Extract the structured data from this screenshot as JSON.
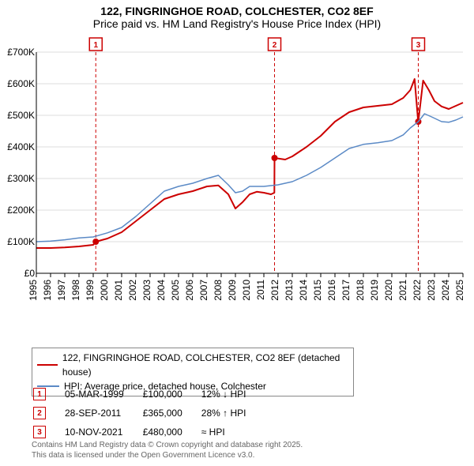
{
  "title": {
    "line1": "122, FINGRINGHOE ROAD, COLCHESTER, CO2 8EF",
    "line2": "Price paid vs. HM Land Registry's House Price Index (HPI)"
  },
  "chart": {
    "type": "line",
    "background_color": "#ffffff",
    "plot_bg_color": "#ffffff",
    "grid_color": "#dddddd",
    "axis_color": "#000000",
    "tick_fontsize": 12,
    "x": {
      "min": 1995,
      "max": 2025,
      "ticks": [
        1995,
        1996,
        1997,
        1998,
        1999,
        2000,
        2001,
        2002,
        2003,
        2004,
        2005,
        2006,
        2007,
        2008,
        2009,
        2010,
        2011,
        2012,
        2013,
        2014,
        2015,
        2016,
        2017,
        2018,
        2019,
        2020,
        2021,
        2022,
        2023,
        2024,
        2025
      ],
      "tick_label_rotation": -90
    },
    "y": {
      "min": 0,
      "max": 700000,
      "ticks": [
        0,
        100000,
        200000,
        300000,
        400000,
        500000,
        600000,
        700000
      ],
      "tick_labels": [
        "£0",
        "£100K",
        "£200K",
        "£300K",
        "£400K",
        "£500K",
        "£600K",
        "£700K"
      ]
    },
    "series": [
      {
        "name": "price_paid",
        "label": "122, FINGRINGHOE ROAD, COLCHESTER, CO2 8EF (detached house)",
        "color": "#cc0000",
        "line_width": 2,
        "points": [
          [
            1995.0,
            80000
          ],
          [
            1996.0,
            80000
          ],
          [
            1997.0,
            82000
          ],
          [
            1998.0,
            85000
          ],
          [
            1999.0,
            90000
          ],
          [
            1999.18,
            100000
          ],
          [
            2000.0,
            110000
          ],
          [
            2001.0,
            130000
          ],
          [
            2002.0,
            165000
          ],
          [
            2003.0,
            200000
          ],
          [
            2004.0,
            235000
          ],
          [
            2005.0,
            250000
          ],
          [
            2006.0,
            260000
          ],
          [
            2007.0,
            275000
          ],
          [
            2007.8,
            278000
          ],
          [
            2008.5,
            250000
          ],
          [
            2009.0,
            205000
          ],
          [
            2009.5,
            225000
          ],
          [
            2010.0,
            250000
          ],
          [
            2010.5,
            258000
          ],
          [
            2011.0,
            255000
          ],
          [
            2011.5,
            250000
          ],
          [
            2011.74,
            255000
          ],
          [
            2011.75,
            365000
          ],
          [
            2012.5,
            360000
          ],
          [
            2013.0,
            370000
          ],
          [
            2014.0,
            400000
          ],
          [
            2015.0,
            435000
          ],
          [
            2016.0,
            480000
          ],
          [
            2017.0,
            510000
          ],
          [
            2018.0,
            525000
          ],
          [
            2019.0,
            530000
          ],
          [
            2020.0,
            535000
          ],
          [
            2020.8,
            555000
          ],
          [
            2021.3,
            580000
          ],
          [
            2021.6,
            615000
          ],
          [
            2021.85,
            480000
          ],
          [
            2021.86,
            480000
          ],
          [
            2022.2,
            610000
          ],
          [
            2022.6,
            580000
          ],
          [
            2023.0,
            545000
          ],
          [
            2023.5,
            528000
          ],
          [
            2024.0,
            520000
          ],
          [
            2024.5,
            530000
          ],
          [
            2025.0,
            540000
          ]
        ],
        "markers": [
          {
            "x": 1999.18,
            "y": 100000
          },
          {
            "x": 2011.75,
            "y": 365000
          },
          {
            "x": 2021.86,
            "y": 480000
          }
        ]
      },
      {
        "name": "hpi",
        "label": "HPI: Average price, detached house, Colchester",
        "color": "#5b8ac6",
        "line_width": 1.5,
        "points": [
          [
            1995.0,
            100000
          ],
          [
            1996.0,
            102000
          ],
          [
            1997.0,
            106000
          ],
          [
            1998.0,
            112000
          ],
          [
            1999.0,
            115000
          ],
          [
            2000.0,
            128000
          ],
          [
            2001.0,
            145000
          ],
          [
            2002.0,
            180000
          ],
          [
            2003.0,
            220000
          ],
          [
            2004.0,
            260000
          ],
          [
            2005.0,
            275000
          ],
          [
            2006.0,
            285000
          ],
          [
            2007.0,
            300000
          ],
          [
            2007.8,
            310000
          ],
          [
            2008.5,
            280000
          ],
          [
            2009.0,
            255000
          ],
          [
            2009.5,
            260000
          ],
          [
            2010.0,
            275000
          ],
          [
            2011.0,
            275000
          ],
          [
            2012.0,
            280000
          ],
          [
            2013.0,
            290000
          ],
          [
            2014.0,
            310000
          ],
          [
            2015.0,
            335000
          ],
          [
            2016.0,
            365000
          ],
          [
            2017.0,
            395000
          ],
          [
            2018.0,
            408000
          ],
          [
            2019.0,
            413000
          ],
          [
            2020.0,
            420000
          ],
          [
            2020.8,
            438000
          ],
          [
            2021.3,
            460000
          ],
          [
            2021.86,
            480000
          ],
          [
            2022.3,
            505000
          ],
          [
            2022.8,
            495000
          ],
          [
            2023.5,
            480000
          ],
          [
            2024.0,
            478000
          ],
          [
            2024.5,
            485000
          ],
          [
            2025.0,
            495000
          ]
        ]
      }
    ],
    "event_markers": [
      {
        "n": "1",
        "x": 1999.18,
        "color": "#cc0000"
      },
      {
        "n": "2",
        "x": 2011.75,
        "color": "#cc0000"
      },
      {
        "n": "3",
        "x": 2021.86,
        "color": "#cc0000"
      }
    ],
    "event_dash": "4,3",
    "event_marker_box": {
      "w": 16,
      "h": 16,
      "stroke": "#cc0000",
      "fill": "#ffffff",
      "fontsize": 10
    }
  },
  "legend": {
    "series1": "122, FINGRINGHOE ROAD, COLCHESTER, CO2 8EF (detached house)",
    "series2": "HPI: Average price, detached house, Colchester",
    "color1": "#cc0000",
    "color2": "#5b8ac6"
  },
  "events_table": {
    "rows": [
      {
        "n": "1",
        "date": "05-MAR-1999",
        "price": "£100,000",
        "delta": "12% ↓ HPI"
      },
      {
        "n": "2",
        "date": "28-SEP-2011",
        "price": "£365,000",
        "delta": "28% ↑ HPI"
      },
      {
        "n": "3",
        "date": "10-NOV-2021",
        "price": "£480,000",
        "delta": "≈ HPI"
      }
    ]
  },
  "attribution": {
    "line1": "Contains HM Land Registry data © Crown copyright and database right 2025.",
    "line2": "This data is licensed under the Open Government Licence v3.0."
  }
}
